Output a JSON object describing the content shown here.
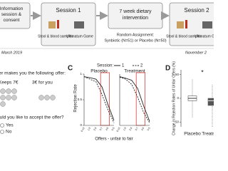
{
  "flow": {
    "steps": [
      {
        "title": "Information session & consent"
      },
      {
        "title": "Session 1",
        "items": [
          "Stool & blood samples",
          "Ultimatum Game"
        ]
      },
      {
        "title": "7 week dietary intervention",
        "items": [
          "Random Assignment:",
          "Synbiotic (N=51) or Placebo (N=50)"
        ]
      },
      {
        "title": "Session 2",
        "items": [
          "Stool & blood samples",
          "Ultimatum Game"
        ]
      }
    ],
    "start": "March 2019",
    "end": "November 2"
  },
  "panel_b": {
    "prompt": "Proposer makes you the following offer:",
    "keeps": "Keeps 7€",
    "offer": "3€ for you",
    "question": "Would you like to accept the offer?",
    "options": [
      "Yes",
      "No"
    ]
  },
  "chart_data": [
    {
      "type": "line",
      "label": "C",
      "legend_title": "Session:",
      "x_label": "Offers - unfair to fair",
      "y_label": "Rejection Rate",
      "categories": [
        "0:10",
        "1:9",
        "2:8",
        "3:7",
        "4:6",
        "5:5"
      ],
      "ylim": [
        0,
        1
      ],
      "yticks": [
        0,
        0.5,
        1
      ],
      "highlight": {
        "from": "3:7",
        "to": "4:6",
        "color": "#e0403a"
      },
      "panels": [
        {
          "title": "Placebo",
          "series": [
            {
              "name": "1",
              "color": "#222",
              "line_style": "solid",
              "values": [
                0.95,
                0.93,
                0.9,
                0.75,
                0.4,
                0.1
              ]
            },
            {
              "name": "2",
              "color": "#222",
              "line_style": "dashed",
              "values": [
                0.95,
                0.9,
                0.85,
                0.6,
                0.3,
                0.05
              ]
            }
          ]
        },
        {
          "title": "Treatment",
          "series": [
            {
              "name": "1",
              "color": "#222",
              "line_style": "solid",
              "values": [
                0.95,
                0.92,
                0.88,
                0.72,
                0.38,
                0.08
              ]
            },
            {
              "name": "2",
              "color": "#222",
              "line_style": "dashed",
              "values": [
                0.94,
                0.9,
                0.8,
                0.55,
                0.25,
                0.05
              ]
            }
          ]
        }
      ]
    },
    {
      "type": "box",
      "label": "D",
      "y_label": "Change in Rejection Rates of Unfair Offers (%)",
      "categories": [
        "Placebo",
        "Treatment"
      ],
      "ylim": [
        -60,
        60
      ],
      "yticks": [
        -50,
        0,
        50
      ],
      "color": "#555",
      "annotation": "*",
      "boxes": [
        {
          "min": -40,
          "q1": -5,
          "median": 0,
          "q3": 5,
          "max": 40
        },
        {
          "min": -60,
          "q1": -15,
          "median": -5,
          "q3": 0,
          "max": 30
        }
      ]
    }
  ]
}
